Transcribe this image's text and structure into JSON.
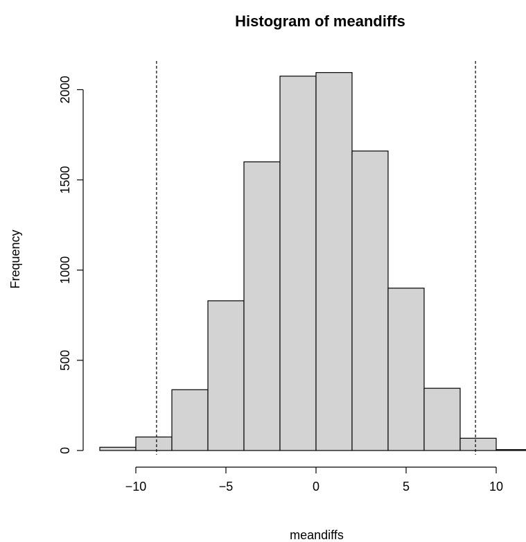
{
  "chart_data": {
    "type": "histogram",
    "title": "Histogram of meandiffs",
    "xlabel": "meandiffs",
    "ylabel": "Frequency",
    "bin_edges": [
      -12,
      -10,
      -8,
      -6,
      -4,
      -2,
      0,
      2,
      4,
      6,
      8,
      10,
      12
    ],
    "values": [
      18,
      75,
      337,
      830,
      1600,
      2075,
      2095,
      1660,
      900,
      345,
      68,
      5
    ],
    "xlim": [
      -12,
      12
    ],
    "ylim": [
      0,
      2100
    ],
    "x_ticks": [
      -10,
      -5,
      0,
      5,
      10
    ],
    "x_tick_labels": [
      "−10",
      "−5",
      "0",
      "5",
      "10"
    ],
    "y_ticks": [
      0,
      500,
      1000,
      1500,
      2000
    ],
    "y_tick_labels": [
      "0",
      "500",
      "1000",
      "1500",
      "2000"
    ],
    "reference_lines": [
      -8.85,
      8.85
    ],
    "bar_fill": "#d3d3d3",
    "bar_stroke": "#000000",
    "reference_line_style": "dashed",
    "grid": false
  }
}
